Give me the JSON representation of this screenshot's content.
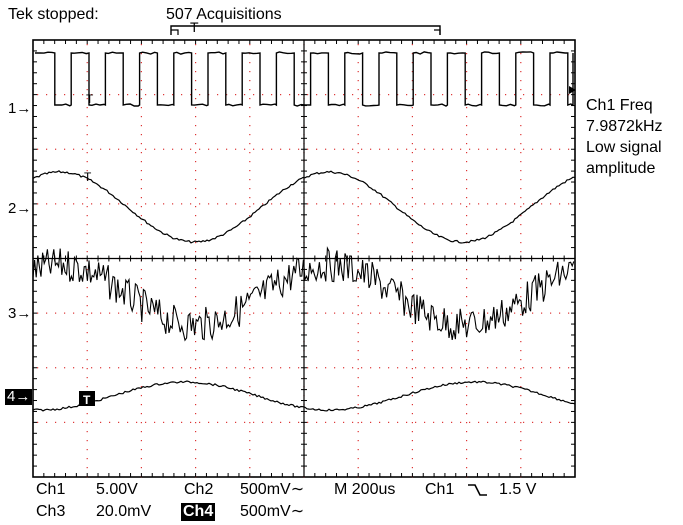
{
  "header": {
    "status": "Tek stopped:",
    "acquisitions": "507 Acquisitions",
    "trigger_marker": "T"
  },
  "side_readout": {
    "line1": "Ch1 Freq",
    "line2": "7.9872kHz",
    "line3": "Low signal",
    "line4": "amplitude"
  },
  "channel_markers": {
    "ch1": "1",
    "ch2": "2",
    "ch3": "3",
    "ch4": "4"
  },
  "footer": {
    "row1": {
      "ch1_label": "Ch1",
      "ch1_scale": "5.00V",
      "ch2_label": "Ch2",
      "ch2_scale": "500mV",
      "ac_symbol": "∼",
      "timebase": "M  200us",
      "trig_source": "Ch1",
      "trig_slope": "⌐",
      "trig_level": "1.5 V"
    },
    "row2": {
      "ch3_label": "Ch3",
      "ch3_scale": "20.0mV",
      "ch4_label": "Ch4",
      "ch4_scale": "500mV",
      "ac_symbol": "∼"
    }
  },
  "trace_markers": {
    "t_ch1": "T",
    "t_ch2": "T",
    "t_ch4": "T"
  },
  "colors": {
    "background": "#ffffff",
    "grid": "#d33",
    "trace": "#000000",
    "frame": "#000000"
  }
}
